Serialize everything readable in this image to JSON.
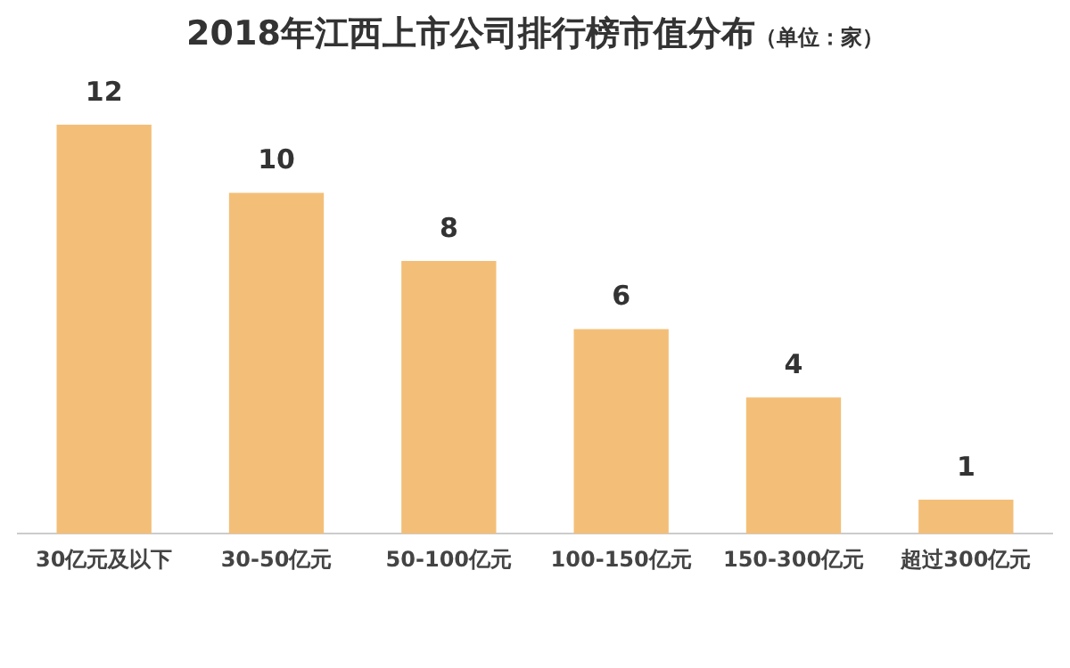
{
  "chart_data": {
    "type": "bar",
    "title": "2018年江西上市公司排行榜市值分布",
    "subtitle": "（单位：家）",
    "categories": [
      "30亿元及以下",
      "30-50亿元",
      "50-100亿元",
      "100-150亿元",
      "150-300亿元",
      "超过300亿元"
    ],
    "values": [
      12,
      10,
      8,
      6,
      4,
      1
    ],
    "color": "#f3bf78",
    "data_labels": true,
    "grid": false,
    "legend": false
  }
}
